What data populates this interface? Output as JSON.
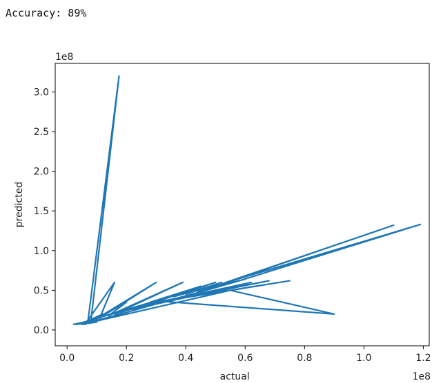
{
  "header": {
    "accuracy_text": "Accuracy: 89%"
  },
  "chart_data": {
    "type": "line",
    "xlabel": "actual",
    "ylabel": "predicted",
    "x_offset_label": "1e8",
    "y_offset_label": "1e8",
    "x_scale": 100000000,
    "y_scale": 100000000,
    "xlim": [
      -0.04,
      1.22
    ],
    "ylim": [
      -0.2,
      3.36
    ],
    "x_ticks": [
      0.0,
      0.2,
      0.4,
      0.6,
      0.8,
      1.0,
      1.2
    ],
    "x_tick_labels": [
      "0.0",
      "0.2",
      "0.4",
      "0.6",
      "0.8",
      "1.0",
      "1.2"
    ],
    "y_ticks": [
      0.0,
      0.5,
      1.0,
      1.5,
      2.0,
      2.5,
      3.0
    ],
    "y_tick_labels": [
      "0.0",
      "0.5",
      "1.0",
      "1.5",
      "2.0",
      "2.5",
      "3.0"
    ],
    "grid": false,
    "line_color": "#1f77b4",
    "series": [
      {
        "x": [
          0.02,
          0.09,
          0.05,
          0.12,
          0.07,
          0.175,
          0.08,
          0.06,
          0.16,
          0.11,
          0.3,
          0.09,
          0.2,
          0.14,
          0.39,
          0.16,
          0.46,
          0.18,
          0.5,
          0.22,
          0.57,
          0.25,
          0.62,
          0.28,
          0.68,
          0.3,
          0.75,
          0.32,
          0.9,
          0.55,
          0.05,
          0.1,
          0.03,
          0.33,
          0.45,
          0.28,
          0.42,
          0.36,
          0.48,
          0.4,
          0.52,
          0.44,
          0.56,
          0.47,
          0.6,
          0.5,
          1.1,
          0.52,
          1.19,
          0.58,
          0.45,
          0.35,
          0.2,
          0.12,
          0.06,
          0.03
        ],
        "y": [
          0.07,
          0.12,
          0.08,
          0.2,
          0.1,
          3.2,
          0.1,
          0.07,
          0.6,
          0.15,
          0.6,
          0.12,
          0.35,
          0.18,
          0.6,
          0.2,
          0.55,
          0.22,
          0.6,
          0.26,
          0.55,
          0.3,
          0.6,
          0.32,
          0.62,
          0.35,
          0.62,
          0.36,
          0.2,
          0.5,
          0.07,
          0.1,
          0.07,
          0.4,
          0.55,
          0.35,
          0.5,
          0.42,
          0.55,
          0.45,
          0.6,
          0.48,
          0.62,
          0.52,
          0.64,
          0.55,
          1.32,
          0.58,
          1.33,
          0.62,
          0.48,
          0.38,
          0.22,
          0.14,
          0.09,
          0.07
        ]
      }
    ]
  }
}
